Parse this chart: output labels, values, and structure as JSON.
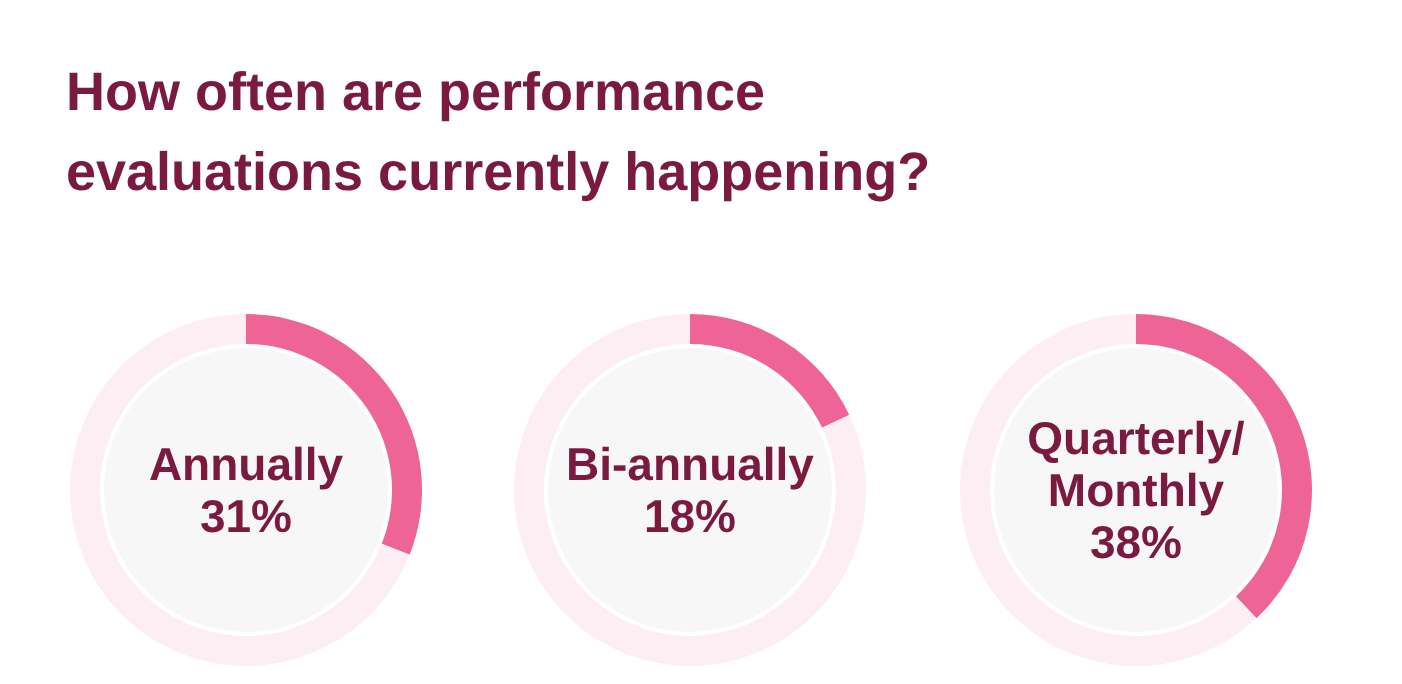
{
  "chart_data": [
    {
      "type": "donut",
      "title": "How often are performance evaluations currently happening?",
      "categories": [
        "Annually",
        null
      ],
      "values": [
        31,
        69
      ],
      "colors": [
        "#ee6494",
        "#fdeef3"
      ],
      "value_labels": [
        "31%",
        null
      ]
    },
    {
      "type": "donut",
      "categories": [
        "Bi-annually",
        null
      ],
      "values": [
        18,
        82
      ],
      "colors": [
        "#ee6494",
        "#fdeef3"
      ],
      "value_labels": [
        "18%",
        null
      ]
    },
    {
      "type": "donut",
      "categories": [
        "Quarterly/ Monthly",
        null
      ],
      "values": [
        38,
        62
      ],
      "colors": [
        "#ee6494",
        "#fdeef3"
      ],
      "value_labels": [
        "38%",
        null
      ]
    }
  ]
}
